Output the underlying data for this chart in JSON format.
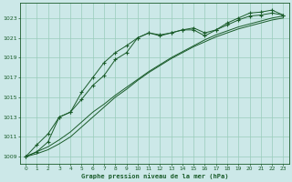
{
  "title": "Graphe pression niveau de la mer (hPa)",
  "bg_color": "#cce8e8",
  "grid_color": "#99ccbb",
  "line_color": "#1a5c2a",
  "xlim": [
    -0.5,
    23.5
  ],
  "ylim": [
    1008.3,
    1024.5
  ],
  "yticks": [
    1009,
    1011,
    1013,
    1015,
    1017,
    1019,
    1021,
    1023
  ],
  "xticks": [
    0,
    1,
    2,
    3,
    4,
    5,
    6,
    7,
    8,
    9,
    10,
    11,
    12,
    13,
    14,
    15,
    16,
    17,
    18,
    19,
    20,
    21,
    22,
    23
  ],
  "series_marker1": [
    1009.0,
    1010.2,
    1011.3,
    1013.0,
    1013.5,
    1014.8,
    1016.2,
    1017.2,
    1018.8,
    1019.5,
    1021.0,
    1021.5,
    1021.2,
    1021.5,
    1021.8,
    1022.0,
    1021.5,
    1021.8,
    1022.3,
    1022.8,
    1023.2,
    1023.3,
    1023.5,
    1023.3
  ],
  "series_smooth1": [
    1009.0,
    1009.3,
    1009.7,
    1010.3,
    1011.0,
    1012.0,
    1013.0,
    1014.0,
    1015.0,
    1015.8,
    1016.7,
    1017.5,
    1018.2,
    1018.9,
    1019.5,
    1020.1,
    1020.6,
    1021.1,
    1021.5,
    1021.9,
    1022.2,
    1022.5,
    1022.8,
    1023.0
  ],
  "series_smooth2": [
    1009.0,
    1009.5,
    1010.0,
    1010.7,
    1011.5,
    1012.5,
    1013.5,
    1014.3,
    1015.2,
    1016.0,
    1016.8,
    1017.6,
    1018.3,
    1019.0,
    1019.6,
    1020.2,
    1020.8,
    1021.3,
    1021.7,
    1022.1,
    1022.4,
    1022.7,
    1023.0,
    1023.2
  ],
  "series_marker2": [
    1009.0,
    1009.5,
    1010.5,
    1013.0,
    1013.5,
    1015.5,
    1017.0,
    1018.5,
    1019.5,
    1020.2,
    1021.0,
    1021.5,
    1021.3,
    1021.5,
    1021.8,
    1021.8,
    1021.2,
    1021.8,
    1022.5,
    1023.0,
    1023.5,
    1023.6,
    1023.8,
    1023.3
  ]
}
